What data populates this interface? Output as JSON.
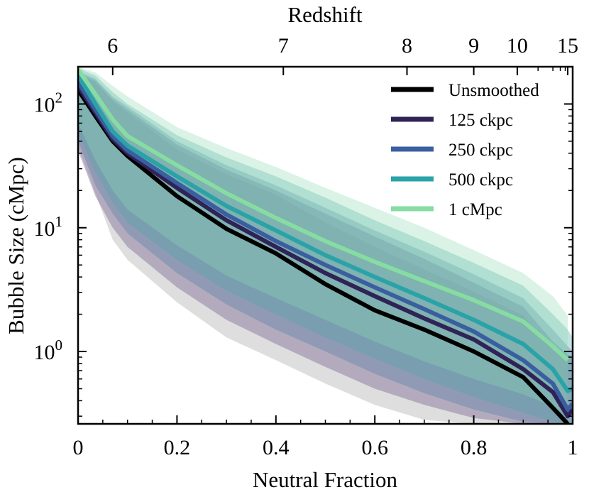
{
  "chart_data": {
    "type": "line",
    "xlabel": "Neutral Fraction",
    "ylabel": "Bubble Size (cMpc)",
    "top_xlabel": "Redshift",
    "xlim": [
      0,
      1
    ],
    "ylim": [
      0.26,
      200
    ],
    "yscale": "log",
    "x_ticks": [
      0,
      0.2,
      0.4,
      0.6,
      0.8,
      1
    ],
    "x_tick_labels": [
      "0",
      "0.2",
      "0.4",
      "0.6",
      "0.8",
      "1"
    ],
    "y_tick_labels": [
      {
        "value": 1,
        "base": "10",
        "exp": "0"
      },
      {
        "value": 10,
        "base": "10",
        "exp": "1"
      },
      {
        "value": 100,
        "base": "10",
        "exp": "2"
      }
    ],
    "top_ticks": [
      {
        "label": "6",
        "x": 0.07
      },
      {
        "label": "7",
        "x": 0.415
      },
      {
        "label": "8",
        "x": 0.665
      },
      {
        "label": "9",
        "x": 0.8
      },
      {
        "label": "10",
        "x": 0.888
      },
      {
        "label": "15",
        "x": 0.99
      }
    ],
    "top_minor_ticks": [
      0.93,
      0.96,
      0.975,
      0.985
    ],
    "legend_position": "top-right",
    "series": [
      {
        "name": "Unsmoothed",
        "color": "#000000",
        "x": [
          0,
          0.035,
          0.07,
          0.1,
          0.2,
          0.3,
          0.4,
          0.5,
          0.6,
          0.7,
          0.8,
          0.9,
          0.96,
          0.99
        ],
        "y": [
          130,
          80,
          50,
          38,
          18,
          9.8,
          6.2,
          3.5,
          2.15,
          1.5,
          1.0,
          0.62,
          0.35,
          0.26
        ],
        "upper": [
          175,
          150,
          105,
          85,
          43,
          27,
          18.5,
          11,
          7,
          4.6,
          3.05,
          1.95,
          1.02,
          0.85
        ],
        "lower": [
          45,
          19,
          8,
          5.5,
          2.5,
          1.3,
          0.85,
          0.55,
          0.37,
          0.28,
          0.26,
          0.26,
          0.26,
          0.26
        ],
        "band_color": "#9a9a9a"
      },
      {
        "name": "125 ckpc",
        "color": "#2f2357",
        "x": [
          0,
          0.035,
          0.07,
          0.1,
          0.2,
          0.3,
          0.4,
          0.5,
          0.6,
          0.7,
          0.8,
          0.9,
          0.96,
          0.99,
          1.0
        ],
        "y": [
          140,
          85,
          52,
          40,
          21,
          11.5,
          7.0,
          4.3,
          2.8,
          1.85,
          1.25,
          0.72,
          0.47,
          0.3,
          0.34
        ],
        "upper": [
          180,
          155,
          110,
          90,
          47,
          29.5,
          20,
          13,
          8.5,
          5.6,
          3.6,
          2.3,
          1.2,
          0.95,
          0.9
        ],
        "lower": [
          42,
          18,
          10,
          7,
          3.3,
          1.8,
          1.15,
          0.75,
          0.5,
          0.37,
          0.29,
          0.26,
          0.26,
          0.26,
          0.26
        ],
        "band_color": "#5b4478"
      },
      {
        "name": "250 ckpc",
        "color": "#3a5fa0",
        "x": [
          0,
          0.035,
          0.07,
          0.1,
          0.2,
          0.3,
          0.4,
          0.5,
          0.6,
          0.7,
          0.8,
          0.9,
          0.96,
          0.99,
          1.0
        ],
        "y": [
          150,
          90,
          55,
          42,
          23,
          12.8,
          7.8,
          5.0,
          3.3,
          2.2,
          1.45,
          0.85,
          0.55,
          0.34,
          0.38
        ],
        "upper": [
          185,
          160,
          115,
          95,
          50,
          32,
          22,
          14.5,
          9.5,
          6.4,
          4.2,
          2.7,
          1.5,
          1.1,
          1.0
        ],
        "lower": [
          50,
          22,
          13,
          9,
          4.3,
          2.4,
          1.5,
          1.0,
          0.66,
          0.46,
          0.34,
          0.27,
          0.26,
          0.26,
          0.26
        ],
        "band_color": "#4d7aa6"
      },
      {
        "name": "500 ckpc",
        "color": "#2aa3a8",
        "x": [
          0,
          0.035,
          0.07,
          0.1,
          0.2,
          0.3,
          0.4,
          0.5,
          0.6,
          0.7,
          0.8,
          0.9,
          0.96,
          0.99,
          1.0
        ],
        "y": [
          170,
          100,
          60,
          46,
          26,
          15,
          9.5,
          6.0,
          4.0,
          2.7,
          1.8,
          1.15,
          0.72,
          0.48,
          0.5
        ],
        "upper": [
          195,
          170,
          125,
          100,
          56,
          37,
          26,
          17.5,
          11.5,
          7.8,
          5.2,
          3.4,
          2.0,
          1.5,
          1.3
        ],
        "lower": [
          58,
          28,
          16,
          11,
          5.5,
          3.1,
          2.0,
          1.3,
          0.88,
          0.6,
          0.43,
          0.32,
          0.27,
          0.26,
          0.26
        ],
        "band_color": "#45a8a5"
      },
      {
        "name": "1 cMpc",
        "color": "#86dca2",
        "x": [
          0,
          0.035,
          0.07,
          0.1,
          0.2,
          0.3,
          0.4,
          0.5,
          0.6,
          0.7,
          0.8,
          0.9,
          0.96,
          0.99
        ],
        "y": [
          190,
          120,
          75,
          55,
          32,
          19,
          12,
          7.8,
          5.3,
          3.7,
          2.6,
          1.75,
          1.1,
          0.85
        ],
        "upper": [
          200,
          180,
          140,
          115,
          65,
          44,
          31,
          21,
          14.5,
          10,
          6.6,
          4.3,
          2.8,
          1.95
        ],
        "lower": [
          70,
          35,
          20,
          14,
          7.2,
          4.1,
          2.7,
          1.8,
          1.2,
          0.83,
          0.6,
          0.45,
          0.36,
          0.3
        ],
        "band_color": "#8fdcb2"
      }
    ]
  }
}
